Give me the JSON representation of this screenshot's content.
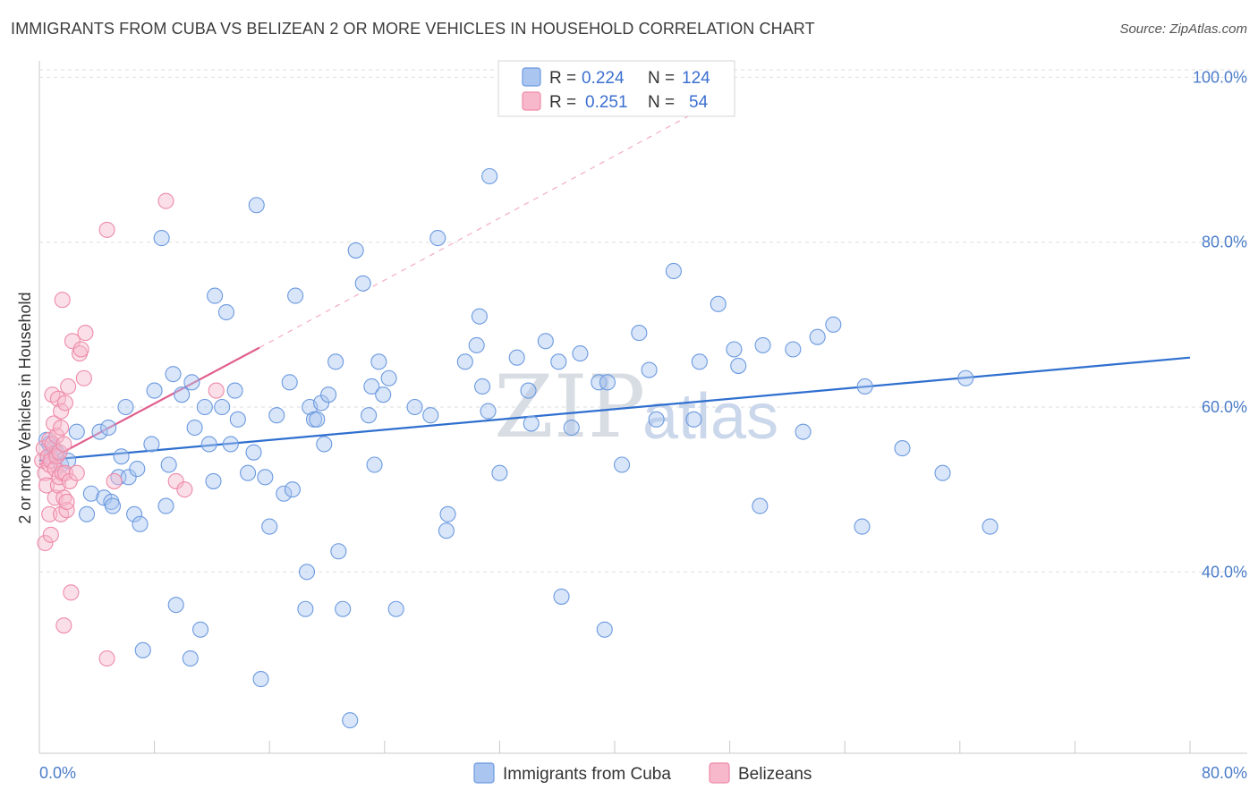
{
  "header": {
    "title": "IMMIGRANTS FROM CUBA VS BELIZEAN 2 OR MORE VEHICLES IN HOUSEHOLD CORRELATION CHART",
    "source": "Source: ZipAtlas.com"
  },
  "legend": {
    "r_label": "R =",
    "n_label": "N =",
    "rows": [
      {
        "r": "0.224",
        "n": "124",
        "color": "#aac6f0"
      },
      {
        "r": "0.251",
        "n": "54",
        "color": "#f7b8cb"
      }
    ]
  },
  "watermark": {
    "zip": "ZIP",
    "atlas": "atlas"
  },
  "chart_data": {
    "type": "scatter",
    "ylabel": "2 or more Vehicles in Household",
    "xlim": [
      0,
      80
    ],
    "ylim": [
      18,
      102
    ],
    "x_tick_labels": [
      "0.0%",
      "80.0%"
    ],
    "y_ticks": [
      {
        "value": 40,
        "label": "40.0%"
      },
      {
        "value": 60,
        "label": "60.0%"
      },
      {
        "value": 80,
        "label": "80.0%"
      },
      {
        "value": 100,
        "label": "100.0%"
      }
    ],
    "grid": true,
    "legend_position": "top-center",
    "series": [
      {
        "name": "Immigrants from Cuba",
        "color": "#aac6f0",
        "stroke": "#6b9ae0",
        "trend": {
          "x0": 0,
          "y0": 53.5,
          "x1": 80,
          "y1": 66.0,
          "color": "#2f6fcf"
        },
        "points": [
          [
            0.5,
            56
          ],
          [
            0.6,
            54
          ],
          [
            0.7,
            55.5
          ],
          [
            0.8,
            54
          ],
          [
            1,
            55
          ],
          [
            1.2,
            54.5
          ],
          [
            1.5,
            53
          ],
          [
            2,
            53.5
          ],
          [
            2.6,
            57
          ],
          [
            3.3,
            47
          ],
          [
            3.6,
            49.5
          ],
          [
            4.2,
            57
          ],
          [
            4.5,
            49
          ],
          [
            4.8,
            57.5
          ],
          [
            5,
            48.5
          ],
          [
            5.1,
            48
          ],
          [
            5.5,
            51.5
          ],
          [
            5.7,
            54
          ],
          [
            6,
            60
          ],
          [
            6.2,
            51.5
          ],
          [
            6.6,
            47
          ],
          [
            6.8,
            52.5
          ],
          [
            7,
            45.8
          ],
          [
            7.2,
            30.5
          ],
          [
            7.8,
            55.5
          ],
          [
            8,
            62
          ],
          [
            8.5,
            80.5
          ],
          [
            8.8,
            48
          ],
          [
            9,
            53
          ],
          [
            9.3,
            64
          ],
          [
            9.5,
            36
          ],
          [
            9.9,
            61.5
          ],
          [
            10.5,
            29.5
          ],
          [
            10.6,
            63
          ],
          [
            10.8,
            57.5
          ],
          [
            11.2,
            33
          ],
          [
            11.5,
            60
          ],
          [
            11.8,
            55.5
          ],
          [
            12.1,
            51
          ],
          [
            12.2,
            73.5
          ],
          [
            12.7,
            60
          ],
          [
            13,
            71.5
          ],
          [
            13.3,
            55.5
          ],
          [
            13.6,
            62
          ],
          [
            13.8,
            58.5
          ],
          [
            14.5,
            52
          ],
          [
            14.9,
            54.5
          ],
          [
            15.1,
            84.5
          ],
          [
            15.4,
            27
          ],
          [
            15.7,
            51.5
          ],
          [
            16,
            45.5
          ],
          [
            16.5,
            59
          ],
          [
            17,
            49.5
          ],
          [
            17.4,
            63
          ],
          [
            17.6,
            50
          ],
          [
            17.8,
            73.5
          ],
          [
            18.5,
            35.5
          ],
          [
            18.6,
            40
          ],
          [
            18.8,
            60
          ],
          [
            19.1,
            58.5
          ],
          [
            19.3,
            58.5
          ],
          [
            19.6,
            60.5
          ],
          [
            19.8,
            55.5
          ],
          [
            20.1,
            61.5
          ],
          [
            20.6,
            65.5
          ],
          [
            20.8,
            42.5
          ],
          [
            21.1,
            35.5
          ],
          [
            21.6,
            22
          ],
          [
            22,
            79
          ],
          [
            22.5,
            75
          ],
          [
            22.9,
            59
          ],
          [
            23.1,
            62.5
          ],
          [
            23.3,
            53
          ],
          [
            23.6,
            65.5
          ],
          [
            23.9,
            61.5
          ],
          [
            24.3,
            63.5
          ],
          [
            24.8,
            35.5
          ],
          [
            26.1,
            60
          ],
          [
            27.2,
            59
          ],
          [
            27.7,
            80.5
          ],
          [
            28.4,
            47
          ],
          [
            28.3,
            45
          ],
          [
            29.6,
            65.5
          ],
          [
            30.4,
            67.5
          ],
          [
            30.6,
            71
          ],
          [
            30.8,
            62.5
          ],
          [
            31.2,
            59.5
          ],
          [
            31.3,
            88
          ],
          [
            32,
            52
          ],
          [
            33.2,
            66
          ],
          [
            34,
            62
          ],
          [
            34.2,
            58
          ],
          [
            35.2,
            68
          ],
          [
            36.1,
            65.5
          ],
          [
            36.3,
            37
          ],
          [
            37,
            57.5
          ],
          [
            37.6,
            66.5
          ],
          [
            38.9,
            63
          ],
          [
            39.3,
            33
          ],
          [
            39.5,
            63
          ],
          [
            40.5,
            53
          ],
          [
            41.7,
            69
          ],
          [
            42.4,
            64.5
          ],
          [
            42.9,
            58.5
          ],
          [
            44.1,
            76.5
          ],
          [
            45.5,
            58.5
          ],
          [
            45.9,
            65.5
          ],
          [
            47.2,
            72.5
          ],
          [
            48.3,
            67
          ],
          [
            48.6,
            65
          ],
          [
            50.1,
            48
          ],
          [
            50.3,
            67.5
          ],
          [
            52.4,
            67
          ],
          [
            53.1,
            57
          ],
          [
            54.1,
            68.5
          ],
          [
            55.2,
            70
          ],
          [
            57.2,
            45.5
          ],
          [
            57.4,
            62.5
          ],
          [
            60,
            55
          ],
          [
            62.8,
            52
          ],
          [
            64.4,
            63.5
          ],
          [
            66.1,
            45.5
          ]
        ]
      },
      {
        "name": "Belizeans",
        "color": "#f7b8cb",
        "stroke": "#ee8aa8",
        "trend": {
          "x0": 0,
          "y0": 53.0,
          "x1": 15.3,
          "y1": 67.2,
          "color": "#e05f8e",
          "dash_x1": 48,
          "dash_y1": 98
        },
        "points": [
          [
            0.2,
            53.5
          ],
          [
            0.3,
            55
          ],
          [
            0.4,
            52
          ],
          [
            0.4,
            43.5
          ],
          [
            0.5,
            50.5
          ],
          [
            0.6,
            54
          ],
          [
            0.7,
            56
          ],
          [
            0.7,
            53
          ],
          [
            0.7,
            47
          ],
          [
            0.8,
            44.5
          ],
          [
            0.8,
            53.5
          ],
          [
            0.9,
            61.5
          ],
          [
            0.9,
            55.5
          ],
          [
            1,
            58
          ],
          [
            1.1,
            52.5
          ],
          [
            1.1,
            49
          ],
          [
            1.2,
            56.5
          ],
          [
            1.2,
            54
          ],
          [
            1.3,
            61
          ],
          [
            1.3,
            50.5
          ],
          [
            1.4,
            54.5
          ],
          [
            1.4,
            51.5
          ],
          [
            1.5,
            59.5
          ],
          [
            1.5,
            57.5
          ],
          [
            1.5,
            47
          ],
          [
            1.6,
            73
          ],
          [
            1.6,
            52
          ],
          [
            1.7,
            55.5
          ],
          [
            1.7,
            49
          ],
          [
            1.7,
            33.5
          ],
          [
            1.8,
            60.5
          ],
          [
            1.8,
            52
          ],
          [
            1.9,
            47.5
          ],
          [
            1.9,
            48.5
          ],
          [
            2,
            62.5
          ],
          [
            2.1,
            51
          ],
          [
            2.2,
            37.5
          ],
          [
            2.3,
            68
          ],
          [
            2.6,
            52
          ],
          [
            2.8,
            66.5
          ],
          [
            2.9,
            67
          ],
          [
            3.2,
            69
          ],
          [
            3.1,
            63.5
          ],
          [
            4.7,
            81.5
          ],
          [
            4.7,
            29.5
          ],
          [
            5.2,
            51
          ],
          [
            8.8,
            85
          ],
          [
            9.5,
            51
          ],
          [
            10.1,
            50
          ],
          [
            12.3,
            62
          ]
        ]
      }
    ]
  },
  "bottom_legend": {
    "items": [
      {
        "label": "Immigrants from Cuba",
        "color": "#aac6f0"
      },
      {
        "label": "Belizeans",
        "color": "#f7b8cb"
      }
    ]
  }
}
